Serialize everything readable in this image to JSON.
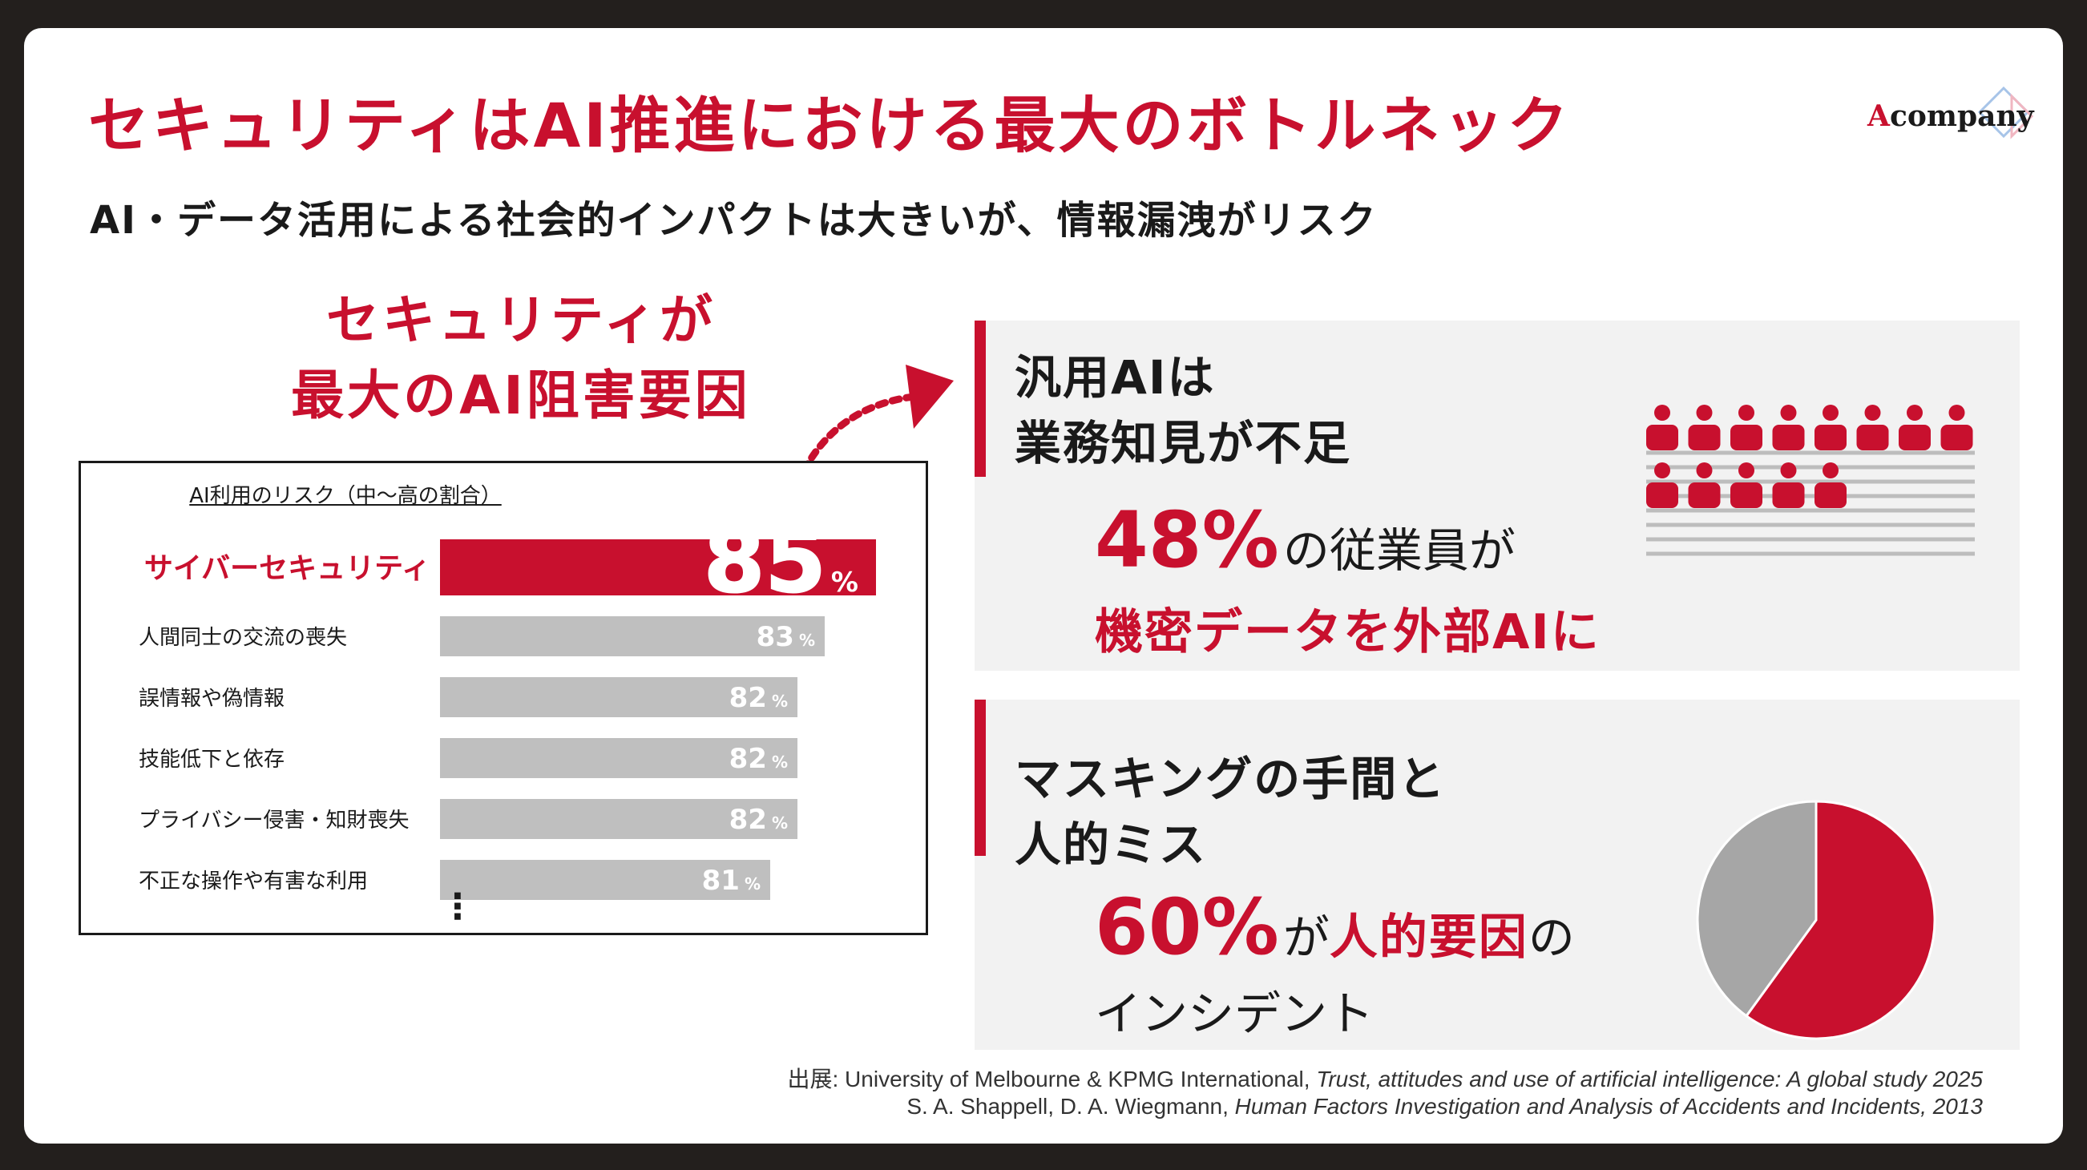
{
  "header": {
    "title": "セキュリティはAI推進における最大のボトルネック",
    "subtitle": "AI・データ活用による社会的インパクトは大きいが、情報漏洩がリスク",
    "logo_text": "company",
    "logo_mark": "A"
  },
  "callout": {
    "line1": "セキュリティが",
    "line2": "最大のAI阻害要因"
  },
  "chart_data": {
    "type": "bar",
    "orientation": "horizontal",
    "title": "AI利用のリスク（中〜高の割合）",
    "categories": [
      "サイバーセキュリティ",
      "人間同士の交流の喪失",
      "誤情報や偽情報",
      "技能低下と依存",
      "プライバシー侵害・知財喪失",
      "不正な操作や有害な利用"
    ],
    "values": [
      85,
      83,
      82,
      82,
      82,
      81
    ],
    "unit": "%",
    "highlight_index": 0,
    "colors": {
      "highlight": "#c8102e",
      "default": "#bfbfbf"
    },
    "continuation": "⋮"
  },
  "panel1": {
    "heading_line1": "汎用AIは",
    "heading_line2": "業務知見が不足",
    "stat": "48%",
    "stat_suffix": "の従業員が",
    "stat_line2": "機密データを外部AIに",
    "icon_total": 13,
    "icon_highlighted": 13,
    "icon": "people-icon"
  },
  "panel2": {
    "heading_line1": "マスキングの手間と",
    "heading_line2": "人的ミス",
    "stat": "60%",
    "stat_mid": "が",
    "stat_red": "人的要因",
    "stat_tail": "の",
    "stat_line2": "インシデント",
    "pie_values": [
      60,
      40
    ],
    "pie_colors": [
      "#c8102e",
      "#a6a6a6"
    ]
  },
  "sources": {
    "line1_plain": "出展: University of Melbourne & KPMG International, ",
    "line1_italic": "Trust, attitudes and use of artificial intelligence: A global study 2025",
    "line2_plain": "S. A. Shappell, D. A. Wiegmann, ",
    "line2_italic": "Human Factors Investigation and Analysis of Accidents and Incidents, 2013"
  }
}
